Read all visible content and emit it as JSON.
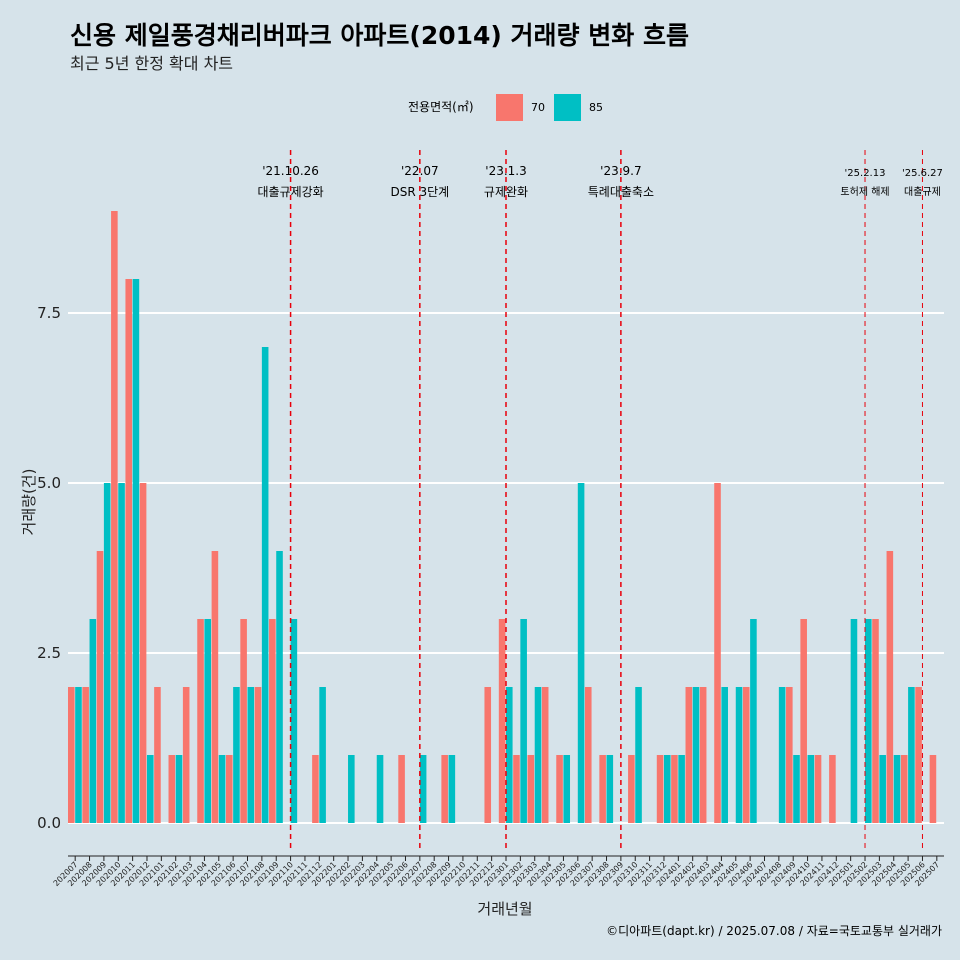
{
  "title": "신용 제일풍경채리버파크 아파트(2014) 거래량 변화 흐름",
  "subtitle": "최근 5년 한정 확대 차트",
  "caption": "©디아파트(dapt.kr) / 2025.07.08 / 자료=국토교통부 실거래가",
  "colors": {
    "background": "#d6e3ea",
    "s70": "#f8766d",
    "s85": "#00bfc4",
    "event": "#e8000b"
  },
  "chart_data": {
    "type": "bar",
    "title": "신용 제일풍경채리버파크 아파트(2014) 거래량 변화 흐름",
    "xlabel": "거래년월",
    "ylabel": "거래량(건)",
    "ylim": [
      -0.7,
      10.0
    ],
    "yticks": [
      0.0,
      2.5,
      5.0,
      7.5
    ],
    "ytick_labels": [
      "0.0",
      "2.5",
      "5.0",
      "7.5"
    ],
    "legend_title": "전용면적(㎡)",
    "categories": [
      "202007",
      "202008",
      "202009",
      "202010",
      "202011",
      "202012",
      "202101",
      "202102",
      "202103",
      "202104",
      "202105",
      "202106",
      "202107",
      "202108",
      "202109",
      "202110",
      "202111",
      "202112",
      "202201",
      "202202",
      "202203",
      "202204",
      "202205",
      "202206",
      "202207",
      "202208",
      "202209",
      "202210",
      "202211",
      "202212",
      "202301",
      "202302",
      "202303",
      "202304",
      "202305",
      "202306",
      "202307",
      "202308",
      "202309",
      "202310",
      "202311",
      "202312",
      "202401",
      "202402",
      "202403",
      "202404",
      "202405",
      "202406",
      "202407",
      "202408",
      "202409",
      "202410",
      "202411",
      "202412",
      "202501",
      "202502",
      "202503",
      "202504",
      "202505",
      "202506",
      "202507"
    ],
    "series": [
      {
        "name": "70",
        "values": [
          2,
          2,
          4,
          9,
          8,
          5,
          2,
          1,
          2,
          3,
          4,
          1,
          3,
          2,
          3,
          0,
          0,
          1,
          0,
          0,
          0,
          0,
          0,
          1,
          0,
          0,
          1,
          0,
          0,
          2,
          3,
          1,
          1,
          2,
          1,
          0,
          2,
          1,
          0,
          1,
          0,
          1,
          1,
          2,
          2,
          5,
          0,
          2,
          0,
          0,
          2,
          3,
          1,
          1,
          0,
          0,
          3,
          4,
          1,
          2,
          1
        ]
      },
      {
        "name": "85",
        "values": [
          2,
          3,
          5,
          5,
          8,
          1,
          0,
          1,
          0,
          3,
          1,
          2,
          2,
          7,
          4,
          3,
          0,
          2,
          0,
          1,
          0,
          1,
          0,
          0,
          1,
          0,
          1,
          0,
          0,
          0,
          2,
          3,
          2,
          0,
          1,
          5,
          0,
          1,
          0,
          2,
          0,
          1,
          1,
          2,
          0,
          2,
          2,
          3,
          0,
          2,
          1,
          1,
          0,
          0,
          3,
          3,
          1,
          1,
          2,
          0,
          0
        ]
      }
    ],
    "events": [
      {
        "position": 15.5,
        "date": "'21.10.26",
        "label": "대출규제강화"
      },
      {
        "position": 24.5,
        "date": "'22.07",
        "label": "DSR 3단계"
      },
      {
        "position": 30.5,
        "date": "'23.1.3",
        "label": "규제완화"
      },
      {
        "position": 38.5,
        "date": "'23.9.7",
        "label": "특례대출축소"
      },
      {
        "position": 55.5,
        "date": "'25.2.13",
        "label": "토허제 해제"
      },
      {
        "position": 59.5,
        "date": "'25.6.27",
        "label": "대출규제"
      }
    ]
  }
}
